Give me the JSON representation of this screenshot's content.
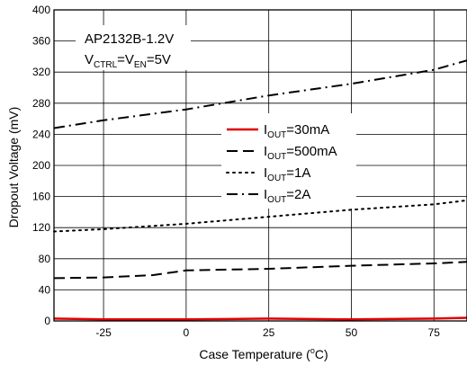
{
  "chart_data": {
    "type": "line",
    "annotation": {
      "line1": "AP2132B-1.2V",
      "line2": {
        "p1": "V",
        "s1": "CTRL",
        "p2": "=V",
        "s2": "EN",
        "p3": "=5V"
      }
    },
    "xlabel": {
      "main": "Case Temperature (",
      "sup": "o",
      "end": "C)"
    },
    "ylabel": "Dropout Voltage (mV)",
    "xlim": [
      -40,
      85
    ],
    "ylim": [
      0,
      400
    ],
    "xticks": [
      -25,
      0,
      25,
      50,
      75
    ],
    "yticks": [
      0,
      40,
      80,
      120,
      160,
      200,
      240,
      280,
      320,
      360,
      400
    ],
    "grid": true,
    "legend_position": "center",
    "series": [
      {
        "name": {
          "p": "I",
          "s": "OUT",
          "rest": "=30mA"
        },
        "color": "#e00000",
        "style": "solid",
        "x": [
          -40,
          -25,
          0,
          25,
          50,
          75,
          85
        ],
        "y": [
          3,
          2,
          2,
          3,
          2,
          3,
          4
        ]
      },
      {
        "name": {
          "p": "I",
          "s": "OUT",
          "rest": "=500mA"
        },
        "color": "#000000",
        "style": "dash",
        "x": [
          -40,
          -25,
          -10,
          0,
          25,
          50,
          75,
          85
        ],
        "y": [
          55,
          56,
          59,
          65,
          67,
          71,
          74,
          76
        ]
      },
      {
        "name": {
          "p": "I",
          "s": "OUT",
          "rest": "=1A"
        },
        "color": "#000000",
        "style": "dot",
        "x": [
          -40,
          -25,
          0,
          25,
          50,
          75,
          85
        ],
        "y": [
          115,
          118,
          125,
          134,
          143,
          150,
          155
        ]
      },
      {
        "name": {
          "p": "I",
          "s": "OUT",
          "rest": "=2A"
        },
        "color": "#000000",
        "style": "dashdot",
        "x": [
          -40,
          -25,
          0,
          25,
          50,
          75,
          85
        ],
        "y": [
          248,
          258,
          272,
          290,
          305,
          323,
          335
        ]
      }
    ]
  }
}
